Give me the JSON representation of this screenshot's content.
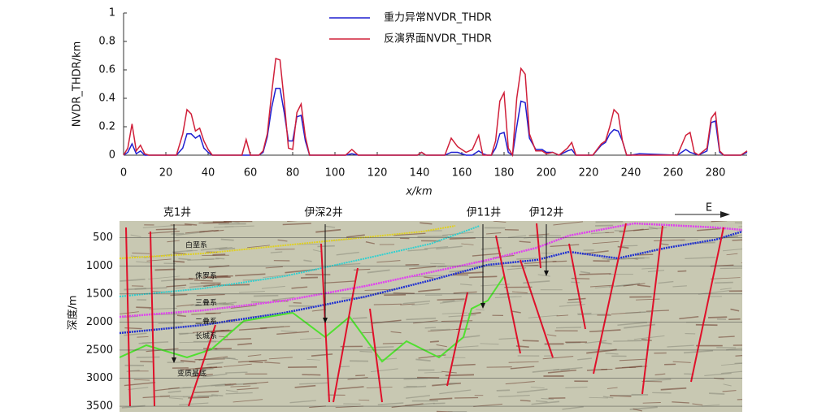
{
  "chart_data": [
    {
      "type": "line",
      "xlabel": "x/km",
      "ylabel": "NVDR_THDR/km",
      "xlim": [
        0,
        295
      ],
      "ylim": [
        0,
        1
      ],
      "xticks": [
        0,
        20,
        40,
        60,
        80,
        100,
        120,
        140,
        160,
        180,
        200,
        220,
        240,
        260,
        280
      ],
      "yticks": [
        0,
        0.2,
        0.4,
        0.6,
        0.8,
        1
      ],
      "legend": "top",
      "x": [
        0,
        2,
        4,
        6,
        8,
        10,
        12,
        25,
        28,
        30,
        32,
        34,
        36,
        38,
        40,
        42,
        56,
        58,
        60,
        64,
        66,
        68,
        70,
        72,
        74,
        76,
        78,
        80,
        82,
        84,
        86,
        88,
        105,
        108,
        111,
        139,
        141,
        143,
        152,
        155,
        158,
        162,
        165,
        168,
        170,
        172,
        174,
        176,
        178,
        180,
        182,
        184,
        186,
        188,
        190,
        192,
        195,
        198,
        200,
        203,
        206,
        210,
        212,
        214,
        222,
        226,
        228,
        230,
        232,
        234,
        236,
        238,
        240,
        244,
        262,
        266,
        268,
        270,
        272,
        276,
        278,
        280,
        282,
        284,
        292,
        295
      ],
      "series": [
        {
          "name": "重力异常NVDR_THDR",
          "color": "#1f1fd0",
          "values": [
            0,
            0.02,
            0.08,
            0.01,
            0.03,
            0,
            0,
            0,
            0.05,
            0.15,
            0.15,
            0.12,
            0.14,
            0.05,
            0.02,
            0,
            0,
            0,
            0,
            0,
            0.02,
            0.13,
            0.33,
            0.47,
            0.47,
            0.3,
            0.1,
            0.1,
            0.27,
            0.28,
            0.1,
            0,
            0,
            0.01,
            0,
            0,
            0.02,
            0,
            0,
            0.02,
            0.02,
            0,
            0,
            0.03,
            0.01,
            0,
            0,
            0.05,
            0.15,
            0.16,
            0.02,
            0,
            0.2,
            0.38,
            0.37,
            0.12,
            0.04,
            0.04,
            0.02,
            0.02,
            0,
            0.03,
            0.04,
            0,
            0,
            0.07,
            0.09,
            0.15,
            0.18,
            0.17,
            0.1,
            0,
            0,
            0.01,
            0,
            0.04,
            0.02,
            0.01,
            0,
            0.03,
            0.23,
            0.24,
            0.02,
            0,
            0,
            0.02
          ]
        },
        {
          "name": "反演界面NVDR_THDR",
          "color": "#d0203a",
          "values": [
            0,
            0.05,
            0.22,
            0.03,
            0.07,
            0.01,
            0,
            0,
            0.15,
            0.32,
            0.29,
            0.17,
            0.19,
            0.1,
            0.04,
            0,
            0,
            0.11,
            0,
            0,
            0.03,
            0.15,
            0.43,
            0.68,
            0.67,
            0.38,
            0.05,
            0.04,
            0.3,
            0.36,
            0.13,
            0,
            0,
            0.04,
            0,
            0,
            0.02,
            0,
            0,
            0.12,
            0.06,
            0.02,
            0.04,
            0.14,
            0,
            0,
            0,
            0.1,
            0.38,
            0.44,
            0.05,
            0,
            0.4,
            0.61,
            0.57,
            0.15,
            0.03,
            0.03,
            0.01,
            0.02,
            0,
            0.05,
            0.09,
            0,
            0,
            0.08,
            0.1,
            0.2,
            0.32,
            0.29,
            0.1,
            0,
            0,
            0,
            0,
            0.14,
            0.16,
            0.02,
            0,
            0.05,
            0.26,
            0.3,
            0.03,
            0,
            0,
            0.03
          ]
        }
      ]
    },
    {
      "type": "seismic",
      "ylabel": "深度/m",
      "ylim": [
        200,
        3600
      ],
      "inverted": true,
      "grid": true,
      "yticks": [
        500,
        1000,
        1500,
        2000,
        2500,
        3000,
        3500
      ],
      "wells": [
        "克1井",
        "伊深2井",
        "伊11井",
        "伊12井"
      ],
      "direction": "E",
      "formations": [
        "白垩系",
        "侏罗系",
        "三叠系",
        "二叠系",
        "长城系",
        "变质基底"
      ]
    }
  ]
}
